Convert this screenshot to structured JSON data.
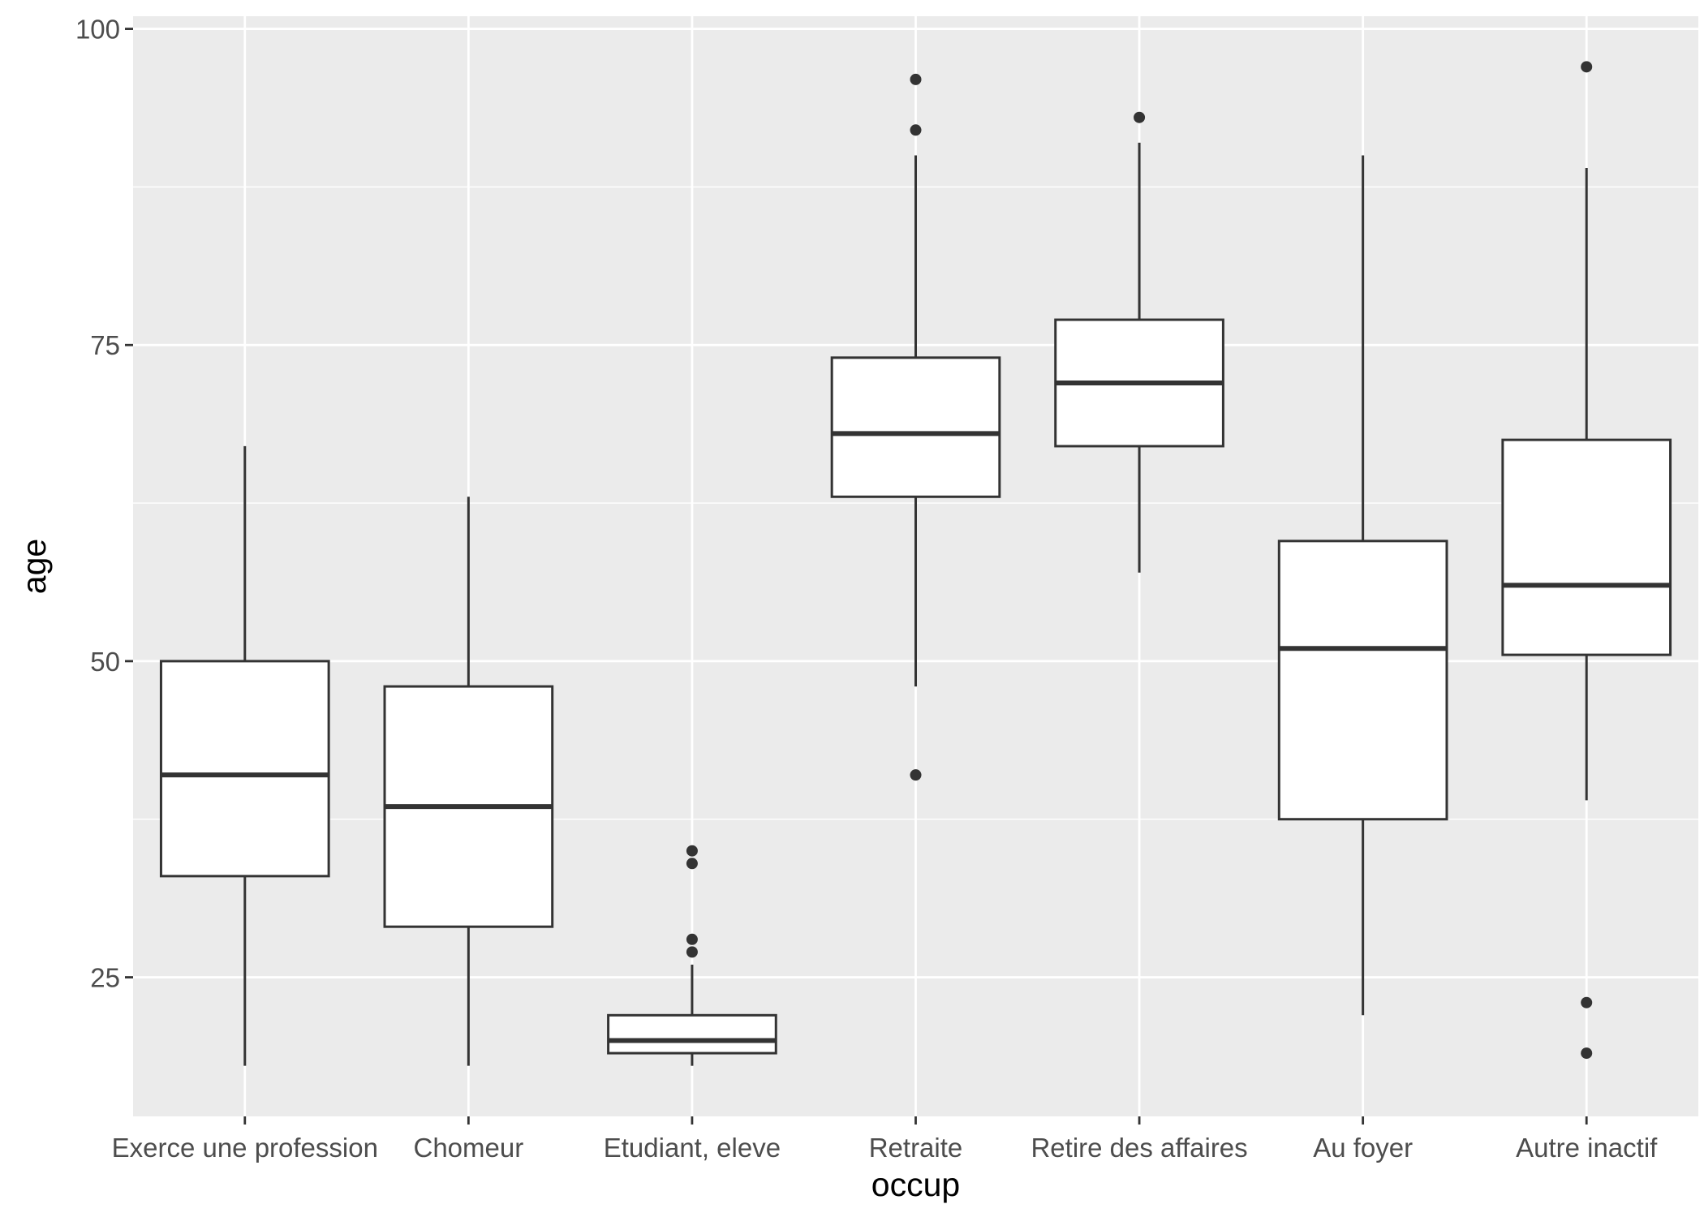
{
  "chart_data": {
    "type": "boxplot",
    "title": "",
    "xlabel": "occup",
    "ylabel": "age",
    "ylim": [
      14,
      101
    ],
    "yticks": [
      25,
      50,
      75,
      100
    ],
    "grid": true,
    "categories": [
      "Exerce une profession",
      "Chomeur",
      "Etudiant, eleve",
      "Retraite",
      "Retire des affaires",
      "Au foyer",
      "Autre inactif"
    ],
    "boxes": [
      {
        "category": "Exerce une profession",
        "whisker_low": 18,
        "q1": 33,
        "median": 41,
        "q3": 50,
        "whisker_high": 67,
        "outliers": []
      },
      {
        "category": "Chomeur",
        "whisker_low": 18,
        "q1": 29,
        "median": 38.5,
        "q3": 48,
        "whisker_high": 63,
        "outliers": []
      },
      {
        "category": "Etudiant, eleve",
        "whisker_low": 18,
        "q1": 19,
        "median": 20,
        "q3": 22,
        "whisker_high": 26,
        "outliers": [
          27,
          28,
          34,
          35
        ]
      },
      {
        "category": "Retraite",
        "whisker_low": 48,
        "q1": 63,
        "median": 68,
        "q3": 74,
        "whisker_high": 90,
        "outliers": [
          41,
          92,
          96
        ]
      },
      {
        "category": "Retire des affaires",
        "whisker_low": 57,
        "q1": 67,
        "median": 72,
        "q3": 77,
        "whisker_high": 91,
        "outliers": [
          93
        ]
      },
      {
        "category": "Au foyer",
        "whisker_low": 22,
        "q1": 37.5,
        "median": 51,
        "q3": 59.5,
        "whisker_high": 90,
        "outliers": []
      },
      {
        "category": "Autre inactif",
        "whisker_low": 39,
        "q1": 50.5,
        "median": 56,
        "q3": 67.5,
        "whisker_high": 89,
        "outliers": [
          19,
          23,
          97
        ]
      }
    ],
    "colors": {
      "panel": "#ebebeb",
      "grid_major": "#ffffff",
      "box_fill": "#ffffff",
      "box_line": "#333333",
      "tick": "#333333",
      "tick_label": "#4d4d4d",
      "axis_title": "#000000"
    }
  }
}
